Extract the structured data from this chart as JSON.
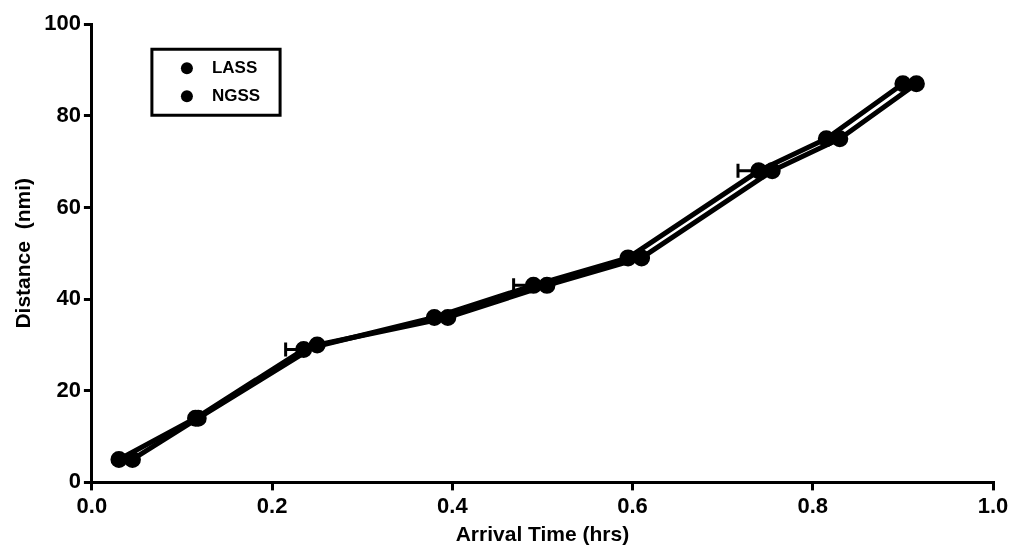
{
  "chart_data": {
    "type": "line",
    "xlabel": "Arrival Time (hrs)",
    "ylabel": "Distance  (nmi)",
    "xlim": [
      0,
      1
    ],
    "xticks": [
      {
        "value": 0,
        "label": "0.0"
      },
      0.2,
      0.4,
      0.6,
      0.8,
      {
        "value": 1,
        "label": "1.0"
      }
    ],
    "ylim": [
      0,
      100
    ],
    "yticks": [
      0,
      20,
      40,
      60,
      80,
      100
    ],
    "grid": false,
    "legend": "top left",
    "marker": "circle",
    "line_style": "solid",
    "series": [
      {
        "name": "LASS",
        "color": "#000000",
        "x": [
          0.03,
          0.115,
          0.235,
          0.38,
          0.49,
          0.595,
          0.74,
          0.815,
          0.9
        ],
        "values": [
          5,
          14,
          29,
          36,
          43,
          49,
          68,
          75,
          87
        ],
        "xerrors": [
          null,
          null,
          [
            0.215,
            0.235
          ],
          null,
          [
            0.468,
            0.49
          ],
          null,
          [
            0.717,
            0.74
          ],
          null,
          null
        ]
      },
      {
        "name": "NGSS",
        "color": "#000000",
        "x": [
          0.045,
          0.118,
          0.25,
          0.395,
          0.505,
          0.61,
          0.755,
          0.83,
          0.915
        ],
        "values": [
          5,
          14,
          30,
          36,
          43,
          49,
          68,
          75,
          87
        ]
      }
    ]
  }
}
